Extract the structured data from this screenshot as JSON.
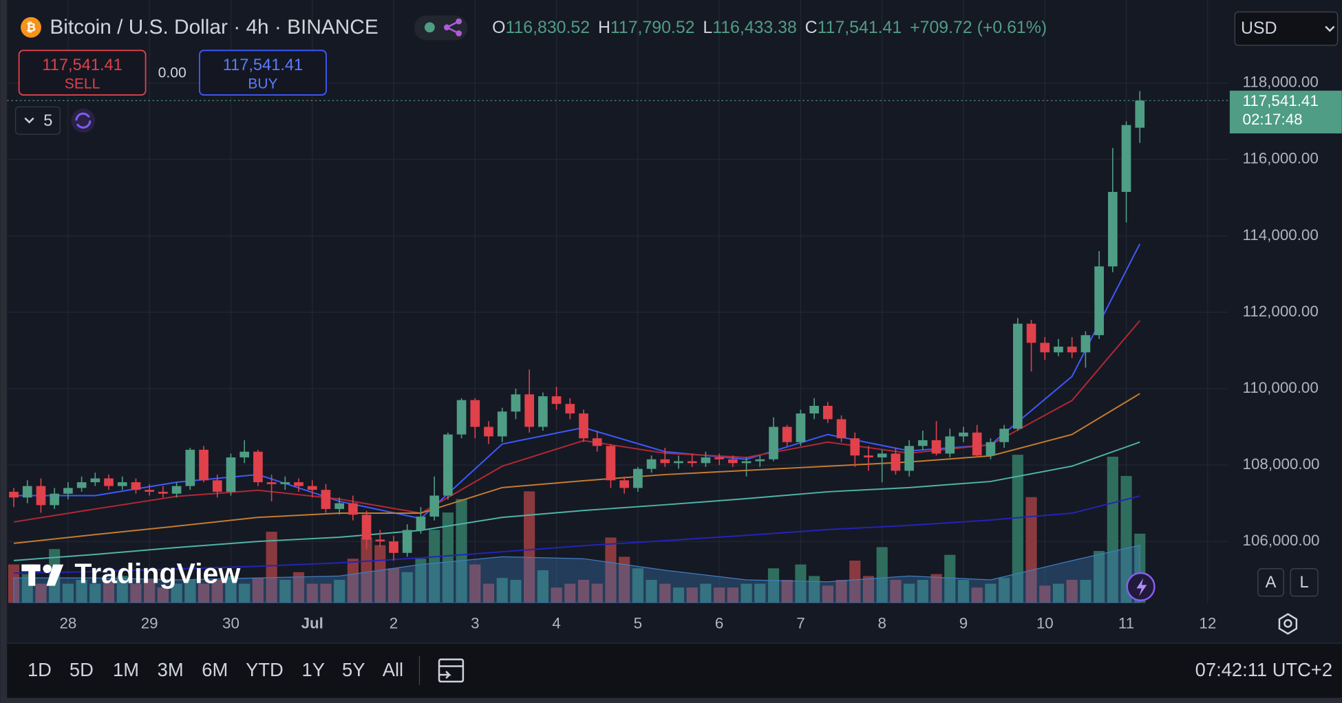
{
  "header": {
    "symbol": "Bitcoin / U.S. Dollar · 4h · BINANCE",
    "ohlc": [
      {
        "label": "O",
        "value": "116,830.52"
      },
      {
        "label": "H",
        "value": "117,790.52"
      },
      {
        "label": "L",
        "value": "116,433.38"
      },
      {
        "label": "C",
        "value": "117,541.41"
      }
    ],
    "change": "+709.72 (+0.61%)",
    "currency": "USD"
  },
  "trade": {
    "sell_price": "117,541.41",
    "sell": "SELL",
    "spread": "0.00",
    "buy_price": "117,541.41",
    "buy": "BUY"
  },
  "indicators_count": 5,
  "watermark": "TradingView",
  "price_tag": {
    "price": "117,541.41",
    "countdown": "02:17:48"
  },
  "scale_buttons": [
    "A",
    "L"
  ],
  "toolbar": {
    "ranges": [
      "1D",
      "5D",
      "1M",
      "3M",
      "6M",
      "YTD",
      "1Y",
      "5Y",
      "All"
    ],
    "clock": "07:42:11 UTC+2"
  },
  "chart_data": {
    "type": "candlestick",
    "up_color": "#4f9d84",
    "down_color": "#e0414b",
    "grid": true,
    "open": [
      107300,
      107150,
      107450,
      106950,
      107250,
      107400,
      107550,
      107650,
      107450,
      107550,
      107350,
      107300,
      107250,
      107450,
      108400,
      107600,
      107300,
      108200,
      108350,
      107550,
      107500,
      107550,
      107450,
      107350,
      106850,
      107000,
      106700,
      106050,
      106000,
      105700,
      106300,
      106650,
      107200,
      108800,
      109700,
      109000,
      108750,
      109400,
      109850,
      109000,
      109800,
      109600,
      109350,
      108700,
      108500,
      107600,
      107400,
      107900,
      108150,
      108050,
      108100,
      108050,
      108200,
      108150,
      108050,
      108100,
      108150,
      109000,
      108600,
      109350,
      109550,
      109200,
      108700,
      108250,
      108200,
      108300,
      107850,
      108500,
      108650,
      108300,
      108750,
      108850,
      108250,
      108600,
      108950,
      111700,
      111200,
      110950,
      111100,
      110950,
      111400,
      113200,
      115150,
      116830.52
    ],
    "high": [
      107400,
      107600,
      107650,
      107400,
      107550,
      107700,
      107800,
      107750,
      107700,
      107650,
      107500,
      107450,
      107550,
      108450,
      108500,
      107750,
      108300,
      108650,
      108400,
      107750,
      107700,
      107650,
      107600,
      107500,
      107150,
      107200,
      106800,
      106300,
      106150,
      106450,
      106900,
      107700,
      108850,
      109750,
      109750,
      109150,
      109500,
      110000,
      110500,
      109900,
      110050,
      109750,
      109450,
      108900,
      108550,
      107700,
      107950,
      108250,
      108450,
      108250,
      108300,
      108350,
      108300,
      108250,
      108200,
      108250,
      109250,
      109050,
      109450,
      109750,
      109650,
      109300,
      108850,
      108500,
      108400,
      108450,
      108650,
      108900,
      109150,
      108950,
      109000,
      109050,
      108700,
      109050,
      111850,
      111800,
      111350,
      111300,
      111350,
      111500,
      113600,
      116300,
      117000,
      117790.52
    ],
    "low": [
      106900,
      107000,
      106750,
      106850,
      107100,
      107300,
      107450,
      107350,
      107350,
      107250,
      107200,
      107150,
      107150,
      107350,
      107550,
      107150,
      107200,
      108050,
      107450,
      107050,
      107350,
      107300,
      107150,
      106750,
      106700,
      106550,
      105800,
      105850,
      105500,
      105600,
      106200,
      106550,
      107100,
      108700,
      108700,
      108550,
      108600,
      109200,
      108850,
      108900,
      109450,
      109200,
      108600,
      108350,
      107400,
      107250,
      107300,
      107800,
      107950,
      107900,
      107950,
      107950,
      108000,
      107950,
      107700,
      107950,
      108100,
      108500,
      108500,
      109200,
      109100,
      108600,
      107950,
      107850,
      107550,
      107750,
      107700,
      108400,
      108250,
      108200,
      108600,
      108200,
      108150,
      108450,
      108900,
      110450,
      110750,
      110850,
      110800,
      110550,
      111300,
      113050,
      114350,
      116433.38
    ],
    "close": [
      107150,
      107450,
      106950,
      107250,
      107400,
      107550,
      107650,
      107450,
      107550,
      107350,
      107300,
      107250,
      107450,
      108400,
      107600,
      107300,
      108200,
      108350,
      107550,
      107500,
      107550,
      107450,
      107350,
      106850,
      107000,
      106700,
      106050,
      106000,
      105700,
      106300,
      106650,
      107200,
      108800,
      109700,
      109000,
      108750,
      109400,
      109850,
      109000,
      109800,
      109600,
      109350,
      108700,
      108500,
      107600,
      107400,
      107900,
      108150,
      108050,
      108100,
      108050,
      108200,
      108150,
      108050,
      108100,
      108150,
      109000,
      108600,
      109350,
      109550,
      109200,
      108700,
      108250,
      108200,
      108300,
      107850,
      108500,
      108650,
      108300,
      108750,
      108850,
      108250,
      108600,
      108950,
      111700,
      111200,
      110950,
      111100,
      110950,
      111400,
      113200,
      115150,
      116900,
      117541.41
    ],
    "volume": {
      "up_color": "#2f6e5d",
      "down_color": "#8a3a3e",
      "vlim": [
        0,
        100
      ],
      "values": [
        20,
        15,
        10,
        28,
        10,
        12,
        10,
        12,
        14,
        10,
        12,
        8,
        10,
        12,
        10,
        12,
        14,
        10,
        13,
        37,
        12,
        16,
        10,
        10,
        12,
        23,
        34,
        30,
        18,
        16,
        23,
        38,
        47,
        54,
        20,
        10,
        13,
        12,
        58,
        17,
        8,
        10,
        12,
        10,
        34,
        24,
        18,
        12,
        10,
        8,
        8,
        10,
        8,
        8,
        10,
        10,
        18,
        12,
        20,
        14,
        9,
        12,
        22,
        14,
        29,
        12,
        10,
        12,
        15,
        25,
        12,
        8,
        10,
        13,
        77,
        55,
        9,
        10,
        12,
        12,
        27,
        76,
        66,
        36
      ]
    },
    "volume_ma": {
      "color": "#3f7fc0",
      "x": [
        0,
        6,
        12,
        18,
        24,
        30,
        36,
        42,
        48,
        54,
        60,
        66,
        72,
        78,
        83
      ],
      "values": [
        13,
        13,
        12,
        13,
        14,
        20,
        24,
        23,
        17,
        12,
        11,
        14,
        12,
        22,
        30
      ]
    },
    "moving_averages": [
      {
        "color": "#3d5afe",
        "x": [
          0,
          6,
          12,
          18,
          24,
          30,
          36,
          42,
          48,
          54,
          60,
          66,
          72,
          78,
          83
        ],
        "values": [
          107200,
          107200,
          107550,
          107750,
          107050,
          106600,
          108550,
          108980,
          108350,
          108150,
          108800,
          108370,
          108530,
          110320,
          113790
        ]
      },
      {
        "color": "#b22833",
        "x": [
          0,
          6,
          12,
          18,
          24,
          30,
          36,
          42,
          48,
          54,
          60,
          66,
          72,
          78,
          83
        ],
        "values": [
          106510,
          106850,
          107180,
          107340,
          107110,
          106740,
          107970,
          108640,
          108310,
          108200,
          108600,
          108310,
          108530,
          109690,
          111780
        ]
      },
      {
        "color": "#c77c2d",
        "x": [
          0,
          6,
          12,
          18,
          24,
          30,
          36,
          42,
          48,
          54,
          60,
          66,
          72,
          78,
          83
        ],
        "values": [
          105950,
          106180,
          106400,
          106630,
          106740,
          106740,
          107410,
          107590,
          107750,
          107860,
          107970,
          108080,
          108240,
          108800,
          109870
        ]
      },
      {
        "color": "#4fb4a8",
        "x": [
          0,
          6,
          12,
          18,
          24,
          30,
          36,
          42,
          48,
          54,
          60,
          66,
          72,
          78,
          83
        ],
        "values": [
          105500,
          105660,
          105840,
          106000,
          106110,
          106290,
          106630,
          106810,
          106960,
          107120,
          107300,
          107410,
          107570,
          107970,
          108600
        ]
      },
      {
        "color": "#2424b8",
        "x": [
          0,
          6,
          12,
          18,
          24,
          30,
          36,
          42,
          48,
          54,
          60,
          66,
          72,
          78,
          83
        ],
        "values": [
          105170,
          105210,
          105280,
          105350,
          105440,
          105570,
          105730,
          105890,
          106020,
          106160,
          106310,
          106420,
          106560,
          106740,
          107190
        ]
      }
    ],
    "xlim": [
      -0.5,
      89.5
    ],
    "xticks": [
      {
        "value": 4,
        "label": "28"
      },
      {
        "value": 10,
        "label": "29"
      },
      {
        "value": 16,
        "label": "30"
      },
      {
        "value": 22,
        "label": "Jul"
      },
      {
        "value": 28,
        "label": "2"
      },
      {
        "value": 34,
        "label": "3"
      },
      {
        "value": 40,
        "label": "4"
      },
      {
        "value": 46,
        "label": "5"
      },
      {
        "value": 52,
        "label": "6"
      },
      {
        "value": 58,
        "label": "7"
      },
      {
        "value": 64,
        "label": "8"
      },
      {
        "value": 70,
        "label": "9"
      },
      {
        "value": 76,
        "label": "10"
      },
      {
        "value": 82,
        "label": "11"
      },
      {
        "value": 88,
        "label": "12"
      }
    ],
    "ylim": [
      104390,
      119950
    ],
    "yticks": [
      {
        "value": 106000,
        "label": "106,000.00"
      },
      {
        "value": 108000,
        "label": "108,000.00"
      },
      {
        "value": 110000,
        "label": "110,000.00"
      },
      {
        "value": 112000,
        "label": "112,000.00"
      },
      {
        "value": 114000,
        "label": "114,000.00"
      },
      {
        "value": 116000,
        "label": "116,000.00"
      },
      {
        "value": 118000,
        "label": "118,000.00"
      }
    ]
  }
}
